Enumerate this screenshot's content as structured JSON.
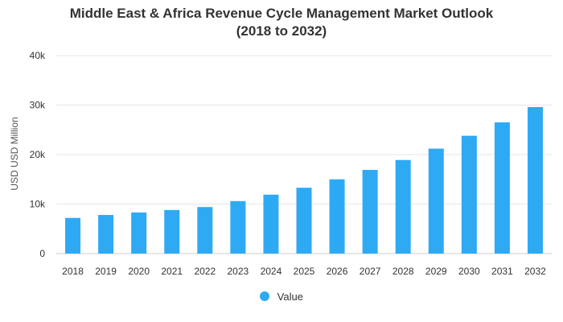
{
  "chart_data": {
    "type": "bar",
    "title_line1": "Middle East & Africa Revenue Cycle Management Market Outlook",
    "title_line2": "(2018 to 2032)",
    "xlabel": "",
    "ylabel": "USD USD Million",
    "ylim": [
      0,
      40000
    ],
    "yticks": [
      0,
      10000,
      20000,
      30000,
      40000
    ],
    "ytick_labels": [
      "0",
      "10k",
      "20k",
      "30k",
      "40k"
    ],
    "categories": [
      "2018",
      "2019",
      "2020",
      "2021",
      "2022",
      "2023",
      "2024",
      "2025",
      "2026",
      "2027",
      "2028",
      "2029",
      "2030",
      "2031",
      "2032"
    ],
    "series": [
      {
        "name": "Value",
        "values": [
          7200,
          7800,
          8300,
          8800,
          9400,
          10600,
          11900,
          13300,
          15000,
          16900,
          18900,
          21200,
          23800,
          26500,
          29600
        ]
      }
    ],
    "legend_position": "bottom",
    "grid": true,
    "bar_color": "#2eaaf5",
    "grid_color": "#e6e6e6"
  }
}
